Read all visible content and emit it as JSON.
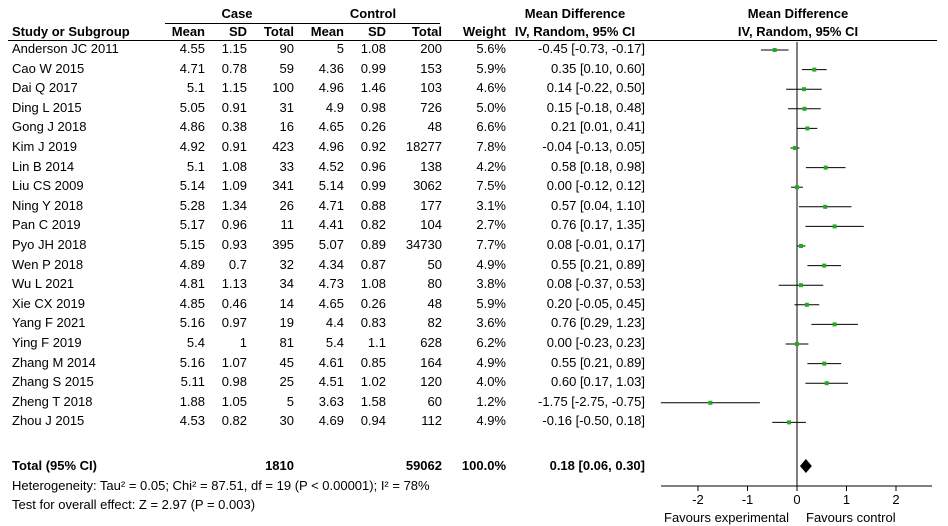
{
  "headers": {
    "case": "Case",
    "control": "Control",
    "md_group": "Mean Difference",
    "md_group_plot": "Mean Difference",
    "study": "Study or Subgroup",
    "mean": "Mean",
    "sd": "SD",
    "total": "Total",
    "mean2": "Mean",
    "sd2": "SD",
    "total2": "Total",
    "weight": "Weight",
    "method": "IV, Random, 95% CI",
    "method_plot": "IV, Random, 95% CI"
  },
  "studies": [
    {
      "name": "Anderson JC 2011",
      "mean1": "4.55",
      "sd1": "1.15",
      "n1": "90",
      "mean2": "5",
      "sd2": "1.08",
      "n2": "200",
      "weight": "5.6%",
      "ci": "-0.45 [-0.73, -0.17]"
    },
    {
      "name": "Cao W 2015",
      "mean1": "4.71",
      "sd1": "0.78",
      "n1": "59",
      "mean2": "4.36",
      "sd2": "0.99",
      "n2": "153",
      "weight": "5.9%",
      "ci": "0.35 [0.10, 0.60]"
    },
    {
      "name": "Dai Q 2017",
      "mean1": "5.1",
      "sd1": "1.15",
      "n1": "100",
      "mean2": "4.96",
      "sd2": "1.46",
      "n2": "103",
      "weight": "4.6%",
      "ci": "0.14 [-0.22, 0.50]"
    },
    {
      "name": "Ding L 2015",
      "mean1": "5.05",
      "sd1": "0.91",
      "n1": "31",
      "mean2": "4.9",
      "sd2": "0.98",
      "n2": "726",
      "weight": "5.0%",
      "ci": "0.15 [-0.18, 0.48]"
    },
    {
      "name": "Gong J 2018",
      "mean1": "4.86",
      "sd1": "0.38",
      "n1": "16",
      "mean2": "4.65",
      "sd2": "0.26",
      "n2": "48",
      "weight": "6.6%",
      "ci": "0.21 [0.01, 0.41]"
    },
    {
      "name": "Kim J 2019",
      "mean1": "4.92",
      "sd1": "0.91",
      "n1": "423",
      "mean2": "4.96",
      "sd2": "0.92",
      "n2": "18277",
      "weight": "7.8%",
      "ci": "-0.04 [-0.13, 0.05]"
    },
    {
      "name": "Lin B 2014",
      "mean1": "5.1",
      "sd1": "1.08",
      "n1": "33",
      "mean2": "4.52",
      "sd2": "0.96",
      "n2": "138",
      "weight": "4.2%",
      "ci": "0.58 [0.18, 0.98]"
    },
    {
      "name": "Liu CS 2009",
      "mean1": "5.14",
      "sd1": "1.09",
      "n1": "341",
      "mean2": "5.14",
      "sd2": "0.99",
      "n2": "3062",
      "weight": "7.5%",
      "ci": "0.00 [-0.12, 0.12]"
    },
    {
      "name": "Ning Y 2018",
      "mean1": "5.28",
      "sd1": "1.34",
      "n1": "26",
      "mean2": "4.71",
      "sd2": "0.88",
      "n2": "177",
      "weight": "3.1%",
      "ci": "0.57 [0.04, 1.10]"
    },
    {
      "name": "Pan C 2019",
      "mean1": "5.17",
      "sd1": "0.96",
      "n1": "11",
      "mean2": "4.41",
      "sd2": "0.82",
      "n2": "104",
      "weight": "2.7%",
      "ci": "0.76 [0.17, 1.35]"
    },
    {
      "name": "Pyo JH 2018",
      "mean1": "5.15",
      "sd1": "0.93",
      "n1": "395",
      "mean2": "5.07",
      "sd2": "0.89",
      "n2": "34730",
      "weight": "7.7%",
      "ci": "0.08 [-0.01, 0.17]"
    },
    {
      "name": "Wen P 2018",
      "mean1": "4.89",
      "sd1": "0.7",
      "n1": "32",
      "mean2": "4.34",
      "sd2": "0.87",
      "n2": "50",
      "weight": "4.9%",
      "ci": "0.55 [0.21, 0.89]"
    },
    {
      "name": "Wu L 2021",
      "mean1": "4.81",
      "sd1": "1.13",
      "n1": "34",
      "mean2": "4.73",
      "sd2": "1.08",
      "n2": "80",
      "weight": "3.8%",
      "ci": "0.08 [-0.37, 0.53]"
    },
    {
      "name": "Xie CX 2019",
      "mean1": "4.85",
      "sd1": "0.46",
      "n1": "14",
      "mean2": "4.65",
      "sd2": "0.26",
      "n2": "48",
      "weight": "5.9%",
      "ci": "0.20 [-0.05, 0.45]"
    },
    {
      "name": "Yang F 2021",
      "mean1": "5.16",
      "sd1": "0.97",
      "n1": "19",
      "mean2": "4.4",
      "sd2": "0.83",
      "n2": "82",
      "weight": "3.6%",
      "ci": "0.76 [0.29, 1.23]"
    },
    {
      "name": "Ying F 2019",
      "mean1": "5.4",
      "sd1": "1",
      "n1": "81",
      "mean2": "5.4",
      "sd2": "1.1",
      "n2": "628",
      "weight": "6.2%",
      "ci": "0.00 [-0.23, 0.23]"
    },
    {
      "name": "Zhang M 2014",
      "mean1": "5.16",
      "sd1": "1.07",
      "n1": "45",
      "mean2": "4.61",
      "sd2": "0.85",
      "n2": "164",
      "weight": "4.9%",
      "ci": "0.55 [0.21, 0.89]"
    },
    {
      "name": "Zhang S 2015",
      "mean1": "5.11",
      "sd1": "0.98",
      "n1": "25",
      "mean2": "4.51",
      "sd2": "1.02",
      "n2": "120",
      "weight": "4.0%",
      "ci": "0.60 [0.17, 1.03]"
    },
    {
      "name": "Zheng T 2018",
      "mean1": "1.88",
      "sd1": "1.05",
      "n1": "5",
      "mean2": "3.63",
      "sd2": "1.58",
      "n2": "60",
      "weight": "1.2%",
      "ci": "-1.75 [-2.75, -0.75]"
    },
    {
      "name": "Zhou J 2015",
      "mean1": "4.53",
      "sd1": "0.82",
      "n1": "30",
      "mean2": "4.69",
      "sd2": "0.94",
      "n2": "112",
      "weight": "4.9%",
      "ci": "-0.16 [-0.50, 0.18]"
    }
  ],
  "total": {
    "label": "Total (95% CI)",
    "n1": "1810",
    "n2": "59062",
    "weight": "100.0%",
    "ci": "0.18 [0.06, 0.30]"
  },
  "footer": {
    "heterogeneity": "Heterogeneity: Tau² = 0.05; Chi² = 87.51, df = 19 (P < 0.00001); I² = 78%",
    "overall": "Test for overall effect: Z = 2.97 (P = 0.003)"
  },
  "colors": {
    "point": "#22aa22",
    "line": "#000000"
  },
  "chart_data": {
    "type": "forest",
    "x_ticks": [
      -2,
      -1,
      0,
      1,
      2
    ],
    "xlim": [
      -2.5,
      2.75
    ],
    "axis_label_left": "Favours experimental",
    "axis_label_right": "Favours control",
    "estimates": [
      {
        "study": "Anderson JC 2011",
        "md": -0.45,
        "lo": -0.73,
        "hi": -0.17
      },
      {
        "study": "Cao W 2015",
        "md": 0.35,
        "lo": 0.1,
        "hi": 0.6
      },
      {
        "study": "Dai Q 2017",
        "md": 0.14,
        "lo": -0.22,
        "hi": 0.5
      },
      {
        "study": "Ding L 2015",
        "md": 0.15,
        "lo": -0.18,
        "hi": 0.48
      },
      {
        "study": "Gong J 2018",
        "md": 0.21,
        "lo": 0.01,
        "hi": 0.41
      },
      {
        "study": "Kim J 2019",
        "md": -0.04,
        "lo": -0.13,
        "hi": 0.05
      },
      {
        "study": "Lin B 2014",
        "md": 0.58,
        "lo": 0.18,
        "hi": 0.98
      },
      {
        "study": "Liu CS 2009",
        "md": 0.0,
        "lo": -0.12,
        "hi": 0.12
      },
      {
        "study": "Ning Y 2018",
        "md": 0.57,
        "lo": 0.04,
        "hi": 1.1
      },
      {
        "study": "Pan C 2019",
        "md": 0.76,
        "lo": 0.17,
        "hi": 1.35
      },
      {
        "study": "Pyo JH 2018",
        "md": 0.08,
        "lo": -0.01,
        "hi": 0.17
      },
      {
        "study": "Wen P 2018",
        "md": 0.55,
        "lo": 0.21,
        "hi": 0.89
      },
      {
        "study": "Wu L 2021",
        "md": 0.08,
        "lo": -0.37,
        "hi": 0.53
      },
      {
        "study": "Xie CX 2019",
        "md": 0.2,
        "lo": -0.05,
        "hi": 0.45
      },
      {
        "study": "Yang F 2021",
        "md": 0.76,
        "lo": 0.29,
        "hi": 1.23
      },
      {
        "study": "Ying F 2019",
        "md": 0.0,
        "lo": -0.23,
        "hi": 0.23
      },
      {
        "study": "Zhang M 2014",
        "md": 0.55,
        "lo": 0.21,
        "hi": 0.89
      },
      {
        "study": "Zhang S 2015",
        "md": 0.6,
        "lo": 0.17,
        "hi": 1.03
      },
      {
        "study": "Zheng T 2018",
        "md": -1.75,
        "lo": -2.75,
        "hi": -0.75
      },
      {
        "study": "Zhou J 2015",
        "md": -0.16,
        "lo": -0.5,
        "hi": 0.18
      }
    ],
    "pooled": {
      "md": 0.18,
      "lo": 0.06,
      "hi": 0.3
    }
  }
}
